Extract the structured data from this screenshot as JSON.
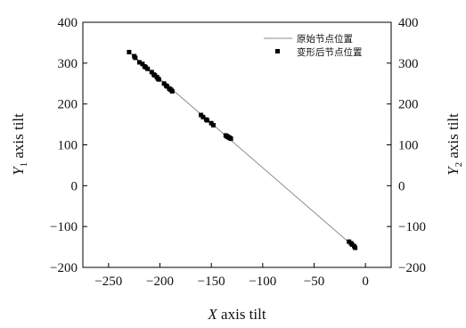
{
  "chart_data": {
    "type": "scatter",
    "title": "",
    "xlabel": {
      "italic": "X",
      "rest": " axis tilt"
    },
    "ylabel_left": {
      "italic": "Y",
      "sub": "1",
      "rest": " axis tilt"
    },
    "ylabel_right": {
      "italic": "Y",
      "sub": "2",
      "rest": " axis tilt"
    },
    "xlim": [
      -275,
      25
    ],
    "ylim": [
      -200,
      400
    ],
    "x_ticks": [
      -250,
      -200,
      -150,
      -100,
      -50,
      0
    ],
    "x_tick_labels": [
      "−250",
      "−200",
      "−150",
      "−100",
      "−50",
      "0"
    ],
    "y_ticks": [
      -200,
      -100,
      0,
      100,
      200,
      300,
      400
    ],
    "y_tick_labels": [
      "−200",
      "−100",
      "0",
      "100",
      "200",
      "300",
      "400"
    ],
    "grid": false,
    "legend_position": "top-right",
    "series": [
      {
        "name": "原始节点位置",
        "kind": "line",
        "color": "#8c8c8c",
        "x": [
          -230,
          -10
        ],
        "y": [
          327,
          -152
        ]
      },
      {
        "name": "变形后节点位置",
        "kind": "markers",
        "marker": "square",
        "color": "#000000",
        "x": [
          -230,
          -225,
          -224,
          -220,
          -217,
          -215,
          -214,
          -212,
          -208,
          -206,
          -205,
          -203,
          -202,
          -201,
          -196,
          -194,
          -193,
          -191,
          -190,
          -189,
          -188,
          -160,
          -158,
          -155,
          -154,
          -150,
          -148,
          -136,
          -135,
          -134,
          -133,
          -132,
          -131,
          -16,
          -14,
          -13,
          -11,
          -10
        ],
        "y": [
          327,
          317,
          313,
          302,
          298,
          292,
          290,
          286,
          278,
          272,
          270,
          266,
          262,
          260,
          250,
          245,
          243,
          238,
          236,
          234,
          231,
          173,
          168,
          162,
          160,
          153,
          148,
          123,
          121,
          120,
          118,
          117,
          115,
          -137,
          -141,
          -144,
          -148,
          -152
        ]
      }
    ]
  }
}
